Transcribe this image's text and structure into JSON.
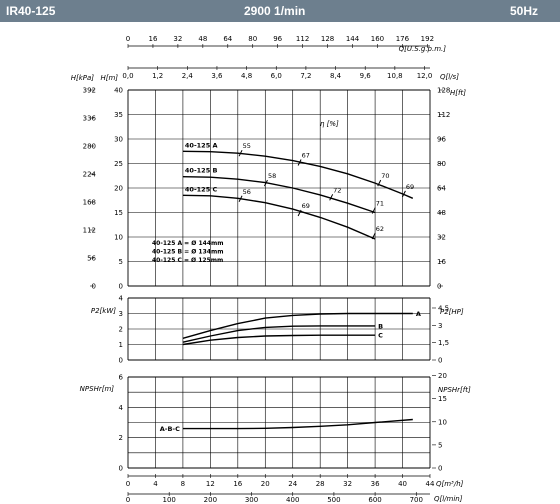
{
  "header": {
    "model": "IR40-125",
    "speed": "2900 1/min",
    "frequency": "50Hz",
    "bg_color": "#6d7f8e"
  },
  "chart_data": {
    "type": "line",
    "flow_axes": {
      "top_us_gpm": {
        "label": "Q[U.S.g.p.m.]",
        "ticks": [
          "0",
          "16",
          "32",
          "48",
          "64",
          "80",
          "96",
          "112",
          "128",
          "144",
          "160",
          "176",
          "192"
        ]
      },
      "top_ls": {
        "label": "Q[l/s]",
        "ticks": [
          "0,0",
          "1,2",
          "2,4",
          "3,6",
          "4,8",
          "6,0",
          "7,2",
          "8,4",
          "9,6",
          "10,8",
          "12,0"
        ]
      },
      "bottom_m3h": {
        "label": "Q[m³/h]",
        "min": 0,
        "max": 44,
        "ticks": [
          "0",
          "4",
          "8",
          "12",
          "16",
          "20",
          "24",
          "28",
          "32",
          "36",
          "40",
          "44"
        ]
      },
      "bottom_lmin": {
        "label": "Q[l/min]",
        "ticks": [
          "0",
          "100",
          "200",
          "300",
          "400",
          "500",
          "600",
          "700"
        ]
      }
    },
    "head_chart": {
      "left_kpa": {
        "label": "H[kPa]",
        "ticks": [
          "0",
          "56",
          "112",
          "168",
          "224",
          "280",
          "336",
          "392"
        ]
      },
      "left_m": {
        "label": "H[m]",
        "min": 0,
        "max": 40,
        "ticks": [
          "0",
          "5",
          "10",
          "15",
          "20",
          "25",
          "30",
          "35",
          "40"
        ]
      },
      "right_ft": {
        "label": "H[ft]",
        "ticks": [
          "0",
          "16",
          "32",
          "48",
          "64",
          "80",
          "96",
          "112",
          "128"
        ]
      },
      "efficiency_label": "η [%]",
      "series": [
        {
          "name": "40-125 A",
          "x": [
            8,
            12,
            16,
            20,
            24,
            28,
            32,
            36,
            40,
            41.5
          ],
          "y": [
            27.5,
            27.4,
            27.1,
            26.5,
            25.6,
            24.4,
            22.9,
            21.0,
            18.8,
            17.9
          ]
        },
        {
          "name": "40-125 B",
          "x": [
            8,
            12,
            16,
            20,
            24,
            28,
            32,
            36
          ],
          "y": [
            22.3,
            22.2,
            21.8,
            21.1,
            20.0,
            18.6,
            16.9,
            15.0
          ]
        },
        {
          "name": "40-125 C",
          "x": [
            8,
            12,
            16,
            20,
            24,
            28,
            32,
            36
          ],
          "y": [
            18.5,
            18.4,
            17.9,
            17.0,
            15.7,
            14.0,
            12.0,
            9.6
          ]
        }
      ],
      "efficiency_points": [
        {
          "label": "55",
          "x": 16.4,
          "y": 27.1
        },
        {
          "label": "67",
          "x": 25.0,
          "y": 25.2
        },
        {
          "label": "70",
          "x": 36.6,
          "y": 21.0
        },
        {
          "label": "69",
          "x": 40.2,
          "y": 18.8
        },
        {
          "label": "58",
          "x": 20.1,
          "y": 21.0
        },
        {
          "label": "72",
          "x": 29.6,
          "y": 18.1
        },
        {
          "label": "71",
          "x": 35.8,
          "y": 15.4
        },
        {
          "label": "56",
          "x": 16.4,
          "y": 17.8
        },
        {
          "label": "69",
          "x": 25.0,
          "y": 14.9
        },
        {
          "label": "62",
          "x": 35.8,
          "y": 10.2
        }
      ],
      "diameter_legend": [
        "40-125 A = Ø 144mm",
        "40-125 B = Ø 134mm",
        "40-125 C = Ø 125mm"
      ]
    },
    "power_chart": {
      "left": {
        "label": "P2[kW]",
        "min": 0,
        "max": 4,
        "ticks": [
          "0",
          "1",
          "2",
          "3",
          "4"
        ]
      },
      "right": {
        "label": "P2[HP]",
        "ticks": [
          "0",
          "1,5",
          "3",
          "4,5"
        ]
      },
      "series": [
        {
          "name": "A",
          "x": [
            8,
            12,
            16,
            20,
            24,
            28,
            32,
            36,
            41.5
          ],
          "y": [
            1.4,
            1.9,
            2.35,
            2.7,
            2.88,
            2.97,
            3.0,
            3.0,
            3.0
          ]
        },
        {
          "name": "B",
          "x": [
            8,
            12,
            16,
            20,
            24,
            28,
            32,
            36
          ],
          "y": [
            1.15,
            1.55,
            1.9,
            2.1,
            2.18,
            2.2,
            2.2,
            2.2
          ]
        },
        {
          "name": "C",
          "x": [
            8,
            12,
            16,
            20,
            24,
            28,
            32,
            36
          ],
          "y": [
            1.0,
            1.28,
            1.45,
            1.55,
            1.58,
            1.6,
            1.6,
            1.6
          ]
        }
      ]
    },
    "npsh_chart": {
      "left": {
        "label": "NPSHr[m]",
        "min": 0,
        "max": 6,
        "ticks": [
          "0",
          "2",
          "4",
          "6"
        ]
      },
      "right": {
        "label": "NPSHr[ft]",
        "ticks": [
          "0",
          "5",
          "10",
          "15",
          "20"
        ]
      },
      "series": [
        {
          "name": "A-B-C",
          "x": [
            8,
            12,
            16,
            20,
            24,
            28,
            32,
            36,
            41.5
          ],
          "y": [
            2.6,
            2.6,
            2.6,
            2.62,
            2.67,
            2.75,
            2.85,
            3.0,
            3.2
          ]
        }
      ]
    }
  }
}
